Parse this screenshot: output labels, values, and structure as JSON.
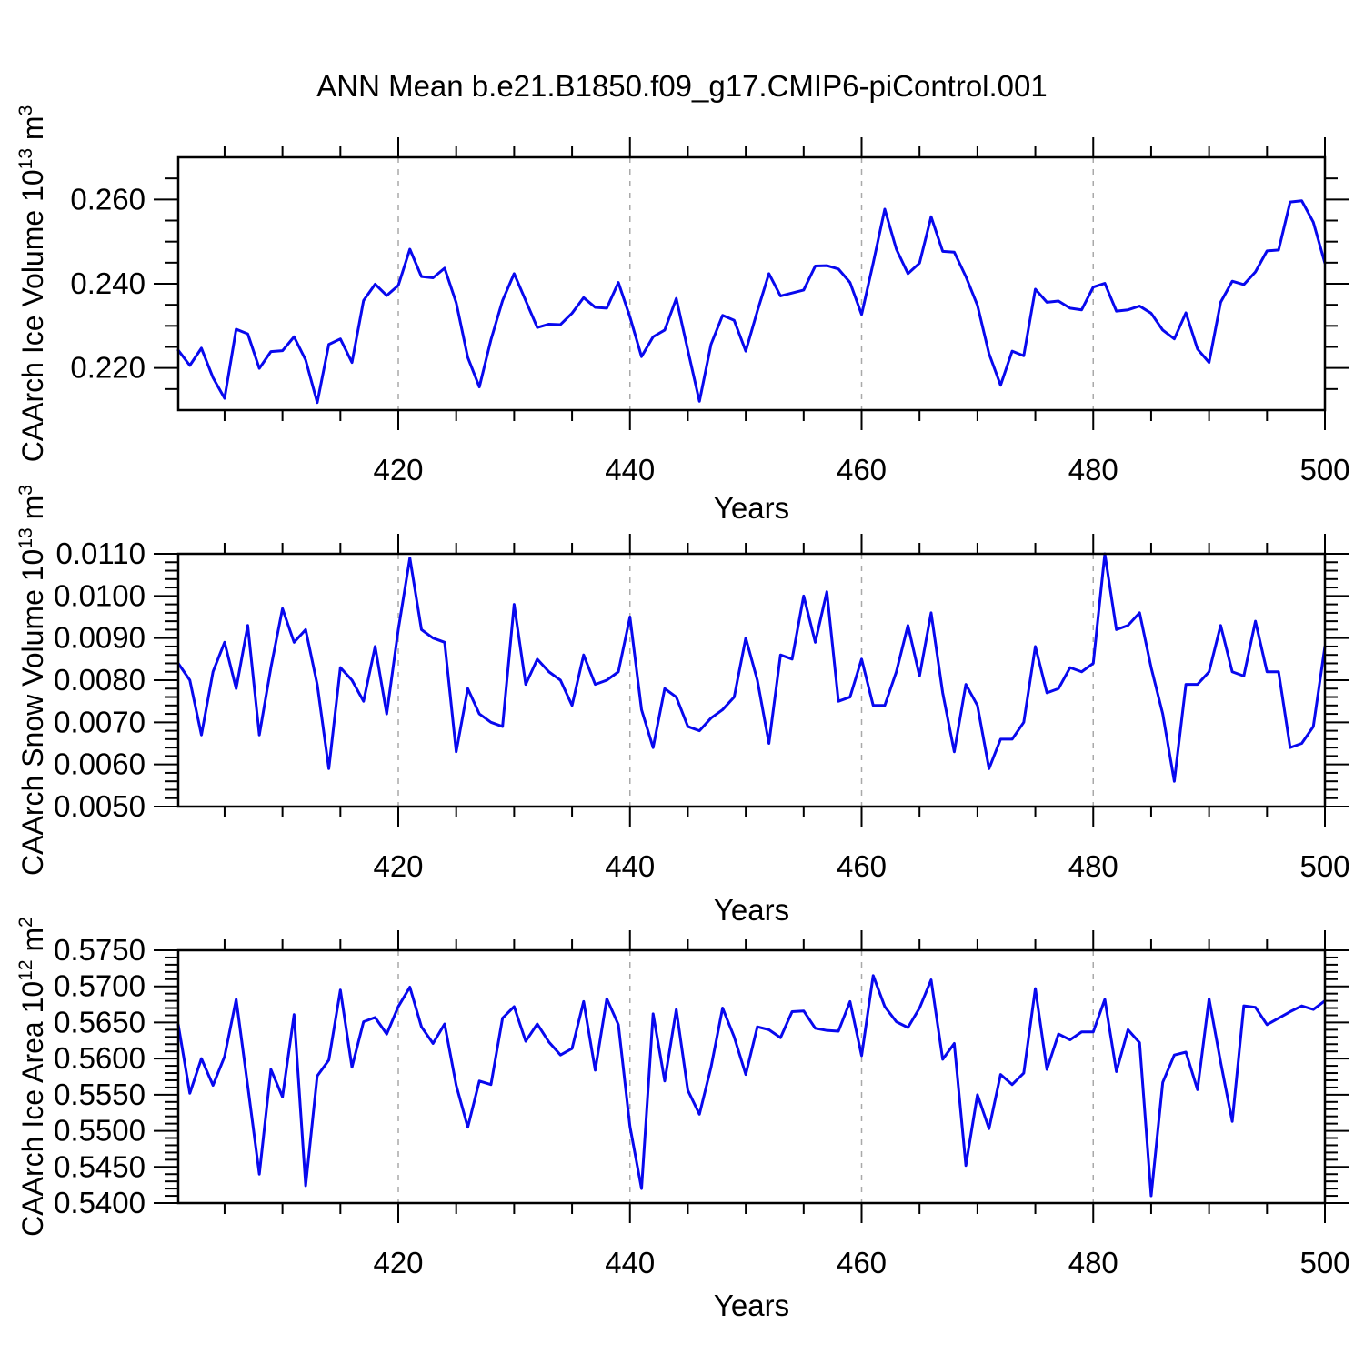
{
  "title": "ANN Mean b.e21.B1850.f09_g17.CMIP6-piControl.001",
  "colors": {
    "line": "#0808EE",
    "axis": "#000000",
    "grid": "#A9A9A9",
    "background": "#FFFFFF"
  },
  "x_axis": {
    "label": "Years",
    "start": 401,
    "end": 500,
    "major_ticks": [
      420,
      440,
      460,
      480,
      500
    ],
    "major_tick_labels": [
      "420",
      "440",
      "460",
      "480",
      "500"
    ],
    "minor_tick_step": 5,
    "gridline_years": [
      420,
      440,
      460,
      480
    ]
  },
  "chart_data": [
    {
      "type": "line",
      "id": "caarch-ice-volume",
      "ylabel": {
        "prefix": "CAArch Ice Volume 10",
        "sup1": "13",
        "mid": " m",
        "sup2": "3"
      },
      "ylim": [
        0.21,
        0.27
      ],
      "ytick_major": [
        0.22,
        0.24,
        0.26
      ],
      "ytick_labels": [
        "0.220",
        "0.240",
        "0.260"
      ],
      "ytick_minor_step": 0.005,
      "x_start": 401,
      "x_step": 1,
      "values": [
        0.2242,
        0.2206,
        0.2247,
        0.2177,
        0.2128,
        0.2292,
        0.2281,
        0.2199,
        0.2239,
        0.2241,
        0.2274,
        0.2219,
        0.2118,
        0.2256,
        0.2269,
        0.2213,
        0.236,
        0.2399,
        0.2372,
        0.2396,
        0.2482,
        0.2417,
        0.2414,
        0.2437,
        0.2355,
        0.2225,
        0.2155,
        0.2267,
        0.236,
        0.2424,
        0.236,
        0.2296,
        0.2304,
        0.2303,
        0.233,
        0.2367,
        0.2344,
        0.2342,
        0.2403,
        0.2321,
        0.2227,
        0.2274,
        0.229,
        0.2365,
        0.2242,
        0.2121,
        0.2256,
        0.2325,
        0.2313,
        0.224,
        0.2335,
        0.2424,
        0.2371,
        0.2378,
        0.2385,
        0.2442,
        0.2443,
        0.2435,
        0.2403,
        0.2327,
        0.2449,
        0.2577,
        0.2482,
        0.2424,
        0.2449,
        0.2559,
        0.2477,
        0.2475,
        0.2417,
        0.2349,
        0.2234,
        0.2159,
        0.224,
        0.2229,
        0.2387,
        0.2356,
        0.2359,
        0.2342,
        0.2338,
        0.2392,
        0.2401,
        0.2335,
        0.2338,
        0.2347,
        0.233,
        0.229,
        0.2269,
        0.2331,
        0.2245,
        0.2213,
        0.2356,
        0.2406,
        0.2398,
        0.2428,
        0.2478,
        0.248,
        0.2594,
        0.2597,
        0.2546,
        0.2449
      ]
    },
    {
      "type": "line",
      "id": "caarch-snow-volume",
      "ylabel": {
        "prefix": "CAArch Snow Volume 10",
        "sup1": "13",
        "mid": " m",
        "sup2": "3"
      },
      "ylim": [
        0.005,
        0.011
      ],
      "ytick_major": [
        0.005,
        0.006,
        0.007,
        0.008,
        0.009,
        0.01,
        0.011
      ],
      "ytick_labels": [
        "0.0050",
        "0.0060",
        "0.0070",
        "0.0080",
        "0.0090",
        "0.0100",
        "0.0110"
      ],
      "ytick_minor_step": 0.0002,
      "x_start": 401,
      "x_step": 1,
      "values": [
        0.0084,
        0.008,
        0.0067,
        0.0082,
        0.0089,
        0.0078,
        0.0093,
        0.0067,
        0.0083,
        0.0097,
        0.0089,
        0.0092,
        0.0079,
        0.0059,
        0.0083,
        0.008,
        0.0075,
        0.0088,
        0.0072,
        0.0092,
        0.0109,
        0.0092,
        0.009,
        0.0089,
        0.0063,
        0.0078,
        0.0072,
        0.007,
        0.0069,
        0.0098,
        0.0079,
        0.0085,
        0.0082,
        0.008,
        0.0074,
        0.0086,
        0.0079,
        0.008,
        0.0082,
        0.0095,
        0.0073,
        0.0064,
        0.0078,
        0.0076,
        0.0069,
        0.0068,
        0.0071,
        0.0073,
        0.0076,
        0.009,
        0.008,
        0.0065,
        0.0086,
        0.0085,
        0.01,
        0.0089,
        0.0101,
        0.0075,
        0.0076,
        0.0085,
        0.0074,
        0.0074,
        0.0082,
        0.0093,
        0.0081,
        0.0096,
        0.0077,
        0.0063,
        0.0079,
        0.0074,
        0.0059,
        0.0066,
        0.0066,
        0.007,
        0.0088,
        0.0077,
        0.0078,
        0.0083,
        0.0082,
        0.0084,
        0.011,
        0.0092,
        0.0093,
        0.0096,
        0.0083,
        0.0072,
        0.0056,
        0.0079,
        0.0079,
        0.0082,
        0.0093,
        0.0082,
        0.0081,
        0.0094,
        0.0082,
        0.0082,
        0.0064,
        0.0065,
        0.0069,
        0.0088
      ]
    },
    {
      "type": "line",
      "id": "caarch-ice-area",
      "ylabel": {
        "prefix": "CAArch Ice Area 10",
        "sup1": "12",
        "mid": " m",
        "sup2": "2"
      },
      "ylim": [
        0.54,
        0.575
      ],
      "ytick_major": [
        0.54,
        0.545,
        0.55,
        0.555,
        0.56,
        0.565,
        0.57,
        0.575
      ],
      "ytick_labels": [
        "0.5400",
        "0.5450",
        "0.5500",
        "0.5550",
        "0.5600",
        "0.5650",
        "0.5700",
        "0.5750"
      ],
      "ytick_minor_step": 0.001,
      "x_start": 401,
      "x_step": 1,
      "values": [
        0.5647,
        0.5552,
        0.56,
        0.5563,
        0.5603,
        0.5682,
        0.5562,
        0.544,
        0.5585,
        0.5547,
        0.5661,
        0.5424,
        0.5576,
        0.5598,
        0.5695,
        0.5588,
        0.5651,
        0.5657,
        0.5634,
        0.5672,
        0.5699,
        0.5644,
        0.5621,
        0.5648,
        0.5563,
        0.5505,
        0.5569,
        0.5564,
        0.5656,
        0.5672,
        0.5624,
        0.5648,
        0.5623,
        0.5605,
        0.5614,
        0.5679,
        0.5584,
        0.5683,
        0.5647,
        0.5506,
        0.542,
        0.5662,
        0.5569,
        0.5668,
        0.5556,
        0.5523,
        0.5588,
        0.567,
        0.563,
        0.5578,
        0.5644,
        0.564,
        0.5629,
        0.5665,
        0.5666,
        0.5642,
        0.5639,
        0.5638,
        0.5679,
        0.5604,
        0.5715,
        0.5672,
        0.5651,
        0.5643,
        0.567,
        0.5709,
        0.5599,
        0.5621,
        0.5452,
        0.555,
        0.5503,
        0.5578,
        0.5564,
        0.558,
        0.5697,
        0.5585,
        0.5634,
        0.5626,
        0.5637,
        0.5637,
        0.5682,
        0.5582,
        0.564,
        0.5622,
        0.541,
        0.5567,
        0.5605,
        0.5609,
        0.5557,
        0.5683,
        0.5595,
        0.5513,
        0.5673,
        0.5671,
        0.5647,
        0.5656,
        0.5665,
        0.5673,
        0.5668,
        0.568
      ]
    }
  ]
}
